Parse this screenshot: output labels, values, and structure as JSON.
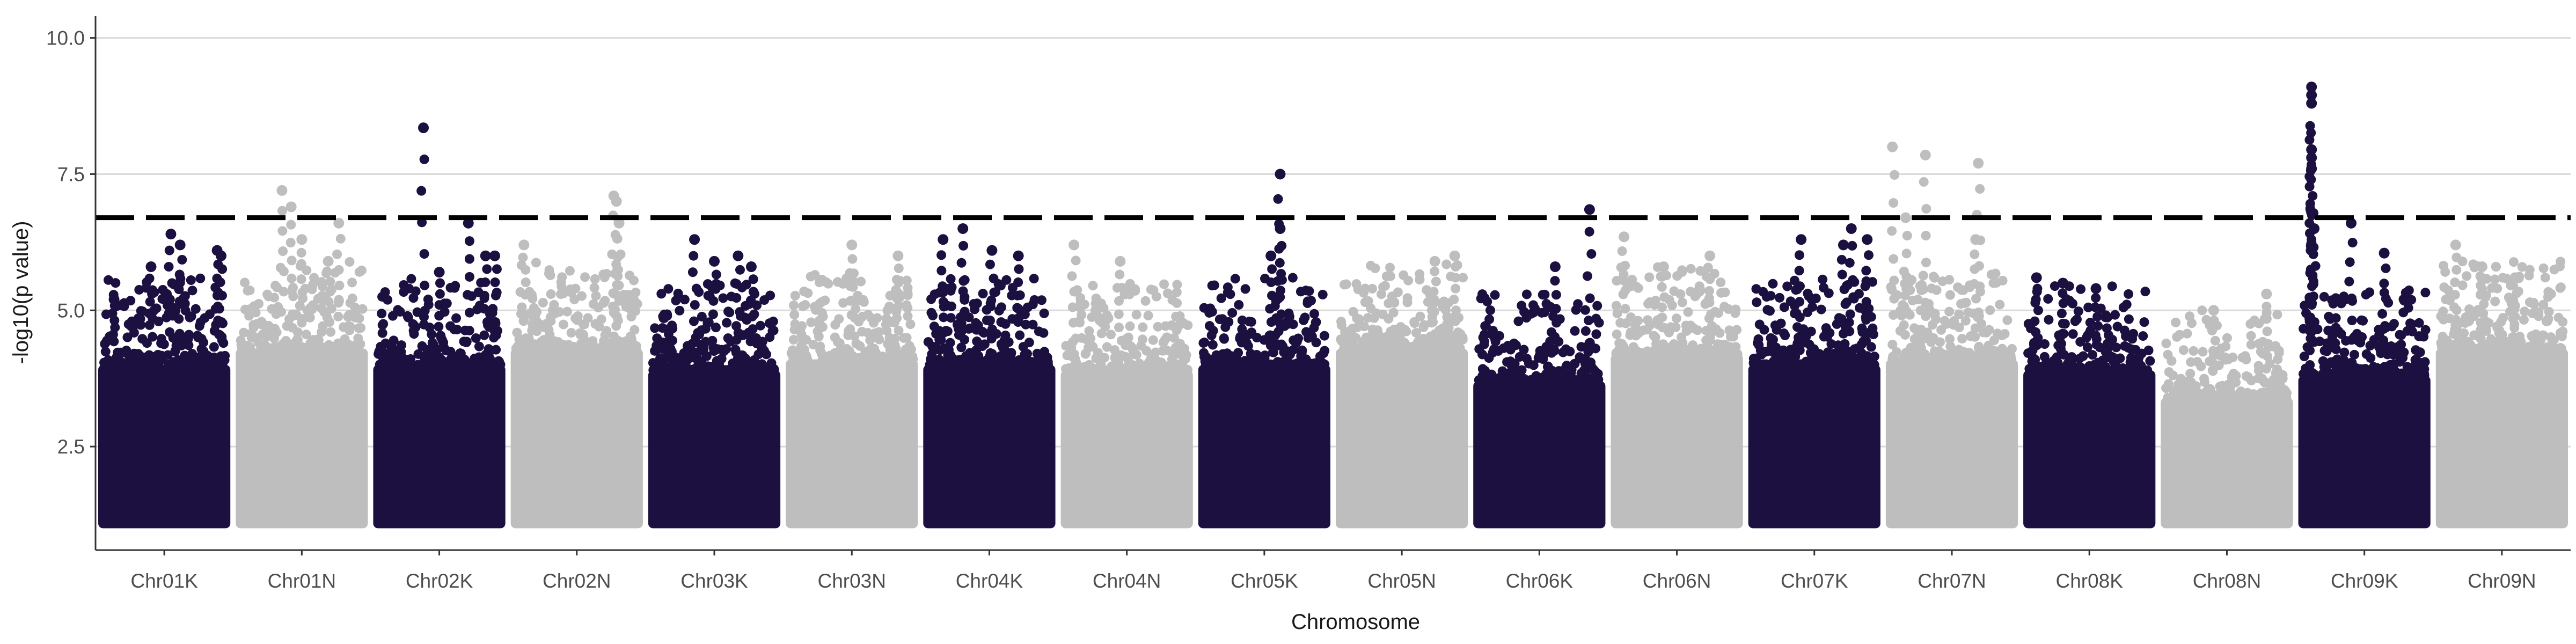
{
  "chart_data": {
    "type": "scatter",
    "title": "",
    "xlabel": "Chromosome",
    "ylabel": "-log10(p value)",
    "ylim": [
      0.6,
      10.4
    ],
    "yticks": [
      2.5,
      5.0,
      7.5,
      10.0
    ],
    "ytick_labels": [
      "2.5",
      "5.0",
      "7.5",
      "10.0"
    ],
    "grid": "horizontal major",
    "legend": "none",
    "significance_threshold": 6.7,
    "colors": {
      "odd_chromosomes": "#1c1040",
      "even_chromosomes": "#bebebe",
      "threshold": "#000000",
      "grid": "#d9d9d9"
    },
    "categories": [
      "Chr01K",
      "Chr01N",
      "Chr02K",
      "Chr02N",
      "Chr03K",
      "Chr03N",
      "Chr04K",
      "Chr04N",
      "Chr05K",
      "Chr05N",
      "Chr06K",
      "Chr06N",
      "Chr07K",
      "Chr07N",
      "Chr08K",
      "Chr08N",
      "Chr09K",
      "Chr09N"
    ],
    "series": [
      {
        "values": [
          {
            "chrom": "Chr01K",
            "floor": 4.3,
            "peaks": [
              [
                0.12,
                5.2
              ],
              [
                0.4,
                5.8
              ],
              [
                0.55,
                6.4
              ],
              [
                0.62,
                6.2
              ],
              [
                0.9,
                6.1
              ],
              [
                0.93,
                6.0
              ]
            ]
          },
          {
            "chrom": "Chr01N",
            "floor": 4.6,
            "peaks": [
              [
                0.35,
                7.2
              ],
              [
                0.42,
                6.9
              ],
              [
                0.5,
                6.3
              ],
              [
                0.7,
                5.9
              ],
              [
                0.78,
                6.6
              ]
            ]
          },
          {
            "chrom": "Chr02K",
            "floor": 4.3,
            "peaks": [
              [
                0.38,
                8.35
              ],
              [
                0.5,
                5.7
              ],
              [
                0.72,
                6.6
              ],
              [
                0.85,
                6.0
              ],
              [
                0.92,
                6.0
              ]
            ]
          },
          {
            "chrom": "Chr02N",
            "floor": 4.6,
            "peaks": [
              [
                0.1,
                6.2
              ],
              [
                0.78,
                7.1
              ],
              [
                0.8,
                7.0
              ],
              [
                0.82,
                6.6
              ]
            ]
          },
          {
            "chrom": "Chr03K",
            "floor": 4.2,
            "peaks": [
              [
                0.35,
                6.3
              ],
              [
                0.5,
                5.9
              ],
              [
                0.68,
                6.0
              ],
              [
                0.78,
                5.8
              ]
            ]
          },
          {
            "chrom": "Chr03N",
            "floor": 4.4,
            "peaks": [
              [
                0.5,
                6.2
              ],
              [
                0.85,
                6.0
              ]
            ]
          },
          {
            "chrom": "Chr04K",
            "floor": 4.3,
            "peaks": [
              [
                0.15,
                6.3
              ],
              [
                0.3,
                6.5
              ],
              [
                0.52,
                6.1
              ],
              [
                0.72,
                6.0
              ]
            ]
          },
          {
            "chrom": "Chr04N",
            "floor": 4.2,
            "peaks": [
              [
                0.1,
                6.2
              ],
              [
                0.45,
                5.9
              ]
            ]
          },
          {
            "chrom": "Chr05K",
            "floor": 4.3,
            "peaks": [
              [
                0.62,
                7.5
              ],
              [
                0.62,
                6.5
              ],
              [
                0.55,
                6.0
              ]
            ]
          },
          {
            "chrom": "Chr05N",
            "floor": 4.6,
            "peaks": [
              [
                0.75,
                5.9
              ],
              [
                0.9,
                6.0
              ]
            ]
          },
          {
            "chrom": "Chr06K",
            "floor": 4.0,
            "peaks": [
              [
                0.62,
                5.8
              ],
              [
                0.88,
                6.85
              ]
            ]
          },
          {
            "chrom": "Chr06N",
            "floor": 4.5,
            "peaks": [
              [
                0.1,
                6.35
              ],
              [
                0.4,
                5.8
              ],
              [
                0.75,
                6.0
              ]
            ]
          },
          {
            "chrom": "Chr07K",
            "floor": 4.3,
            "peaks": [
              [
                0.4,
                6.3
              ],
              [
                0.78,
                6.5
              ],
              [
                0.72,
                6.2
              ],
              [
                0.9,
                6.3
              ]
            ]
          },
          {
            "chrom": "Chr07N",
            "floor": 4.4,
            "peaks": [
              [
                0.05,
                8.0
              ],
              [
                0.3,
                7.85
              ],
              [
                0.7,
                7.7
              ],
              [
                0.15,
                6.7
              ],
              [
                0.68,
                6.3
              ]
            ]
          },
          {
            "chrom": "Chr08K",
            "floor": 4.2,
            "peaks": [
              [
                0.1,
                5.6
              ],
              [
                0.3,
                5.5
              ],
              [
                0.55,
                5.4
              ]
            ]
          },
          {
            "chrom": "Chr08N",
            "floor": 3.7,
            "peaks": [
              [
                0.4,
                5.0
              ],
              [
                0.8,
                5.3
              ]
            ]
          },
          {
            "chrom": "Chr09K",
            "floor": 4.1,
            "peaks": [
              [
                0.1,
                9.1
              ],
              [
                0.1,
                8.95
              ],
              [
                0.1,
                8.8
              ],
              [
                0.1,
                7.95
              ],
              [
                0.1,
                7.8
              ],
              [
                0.1,
                7.6
              ],
              [
                0.1,
                6.8
              ],
              [
                0.12,
                6.5
              ],
              [
                0.4,
                6.6
              ],
              [
                0.65,
                6.05
              ]
            ]
          },
          {
            "chrom": "Chr09N",
            "floor": 4.6,
            "peaks": [
              [
                0.15,
                6.2
              ],
              [
                0.35,
                5.8
              ],
              [
                0.6,
                5.6
              ]
            ]
          }
        ]
      }
    ]
  }
}
